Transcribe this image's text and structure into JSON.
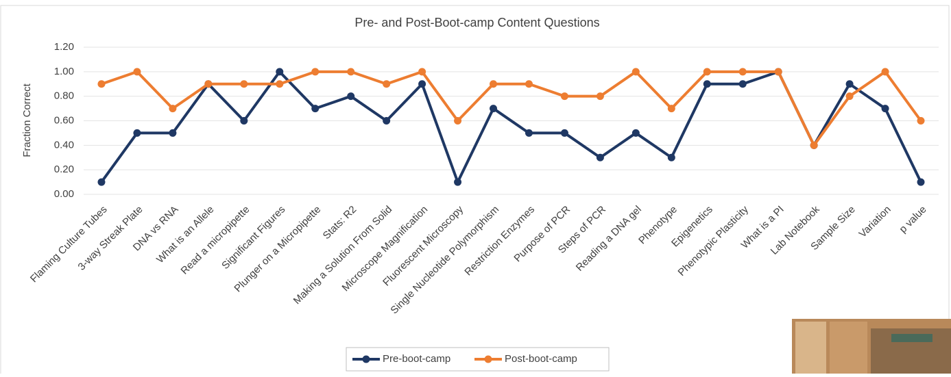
{
  "chart_data": {
    "type": "line",
    "title": "Pre- and Post-Boot-camp  Content Questions",
    "y_label": "Fraction Correct",
    "categories": [
      "Flaming Culture Tubes",
      "3-way Streak Plate",
      "DNA vs RNA",
      "What is an Allele",
      "Read a micropipette",
      "Significant Figures",
      "Plunger on a Micropipette",
      "Stats: R2",
      "Making a Solution From Solid",
      "Microscope Magnification",
      "Fluorescent Microscopy",
      "Single Nucleotide Polymorphism",
      "Restriction Enzymes",
      "Purpose of PCR",
      "Steps of PCR",
      "Reading a DNA gel",
      "Phenotype",
      "Epigenetics",
      "Phenotypic Plasticity",
      "What is a PI",
      "Lab Notebook",
      "Sample Size",
      "Variation",
      "p value"
    ],
    "series": [
      {
        "name": "Pre-boot-camp",
        "color": "#1f3864",
        "values": [
          0.1,
          0.5,
          0.5,
          0.9,
          0.6,
          1.0,
          0.7,
          0.8,
          0.6,
          0.9,
          0.1,
          0.7,
          0.5,
          0.5,
          0.3,
          0.5,
          0.3,
          0.9,
          0.9,
          1.0,
          0.4,
          0.9,
          0.7,
          0.1
        ]
      },
      {
        "name": "Post-boot-camp",
        "color": "#ed7d31",
        "values": [
          0.9,
          1.0,
          0.7,
          0.9,
          0.9,
          0.9,
          1.0,
          1.0,
          0.9,
          1.0,
          0.6,
          0.9,
          0.9,
          0.8,
          0.8,
          1.0,
          0.7,
          1.0,
          1.0,
          1.0,
          0.4,
          0.8,
          1.0,
          0.6
        ]
      }
    ],
    "ylim": [
      0,
      1.2
    ],
    "yticks": [
      {
        "value": 0,
        "label": "0.00"
      },
      {
        "value": 0.2,
        "label": "0.20"
      },
      {
        "value": 0.4,
        "label": "0.40"
      },
      {
        "value": 0.6,
        "label": "0.60"
      },
      {
        "value": 0.8,
        "label": "0.80"
      },
      {
        "value": 1.0,
        "label": "1.00"
      },
      {
        "value": 1.2,
        "label": "1.20"
      }
    ],
    "grid": true
  }
}
